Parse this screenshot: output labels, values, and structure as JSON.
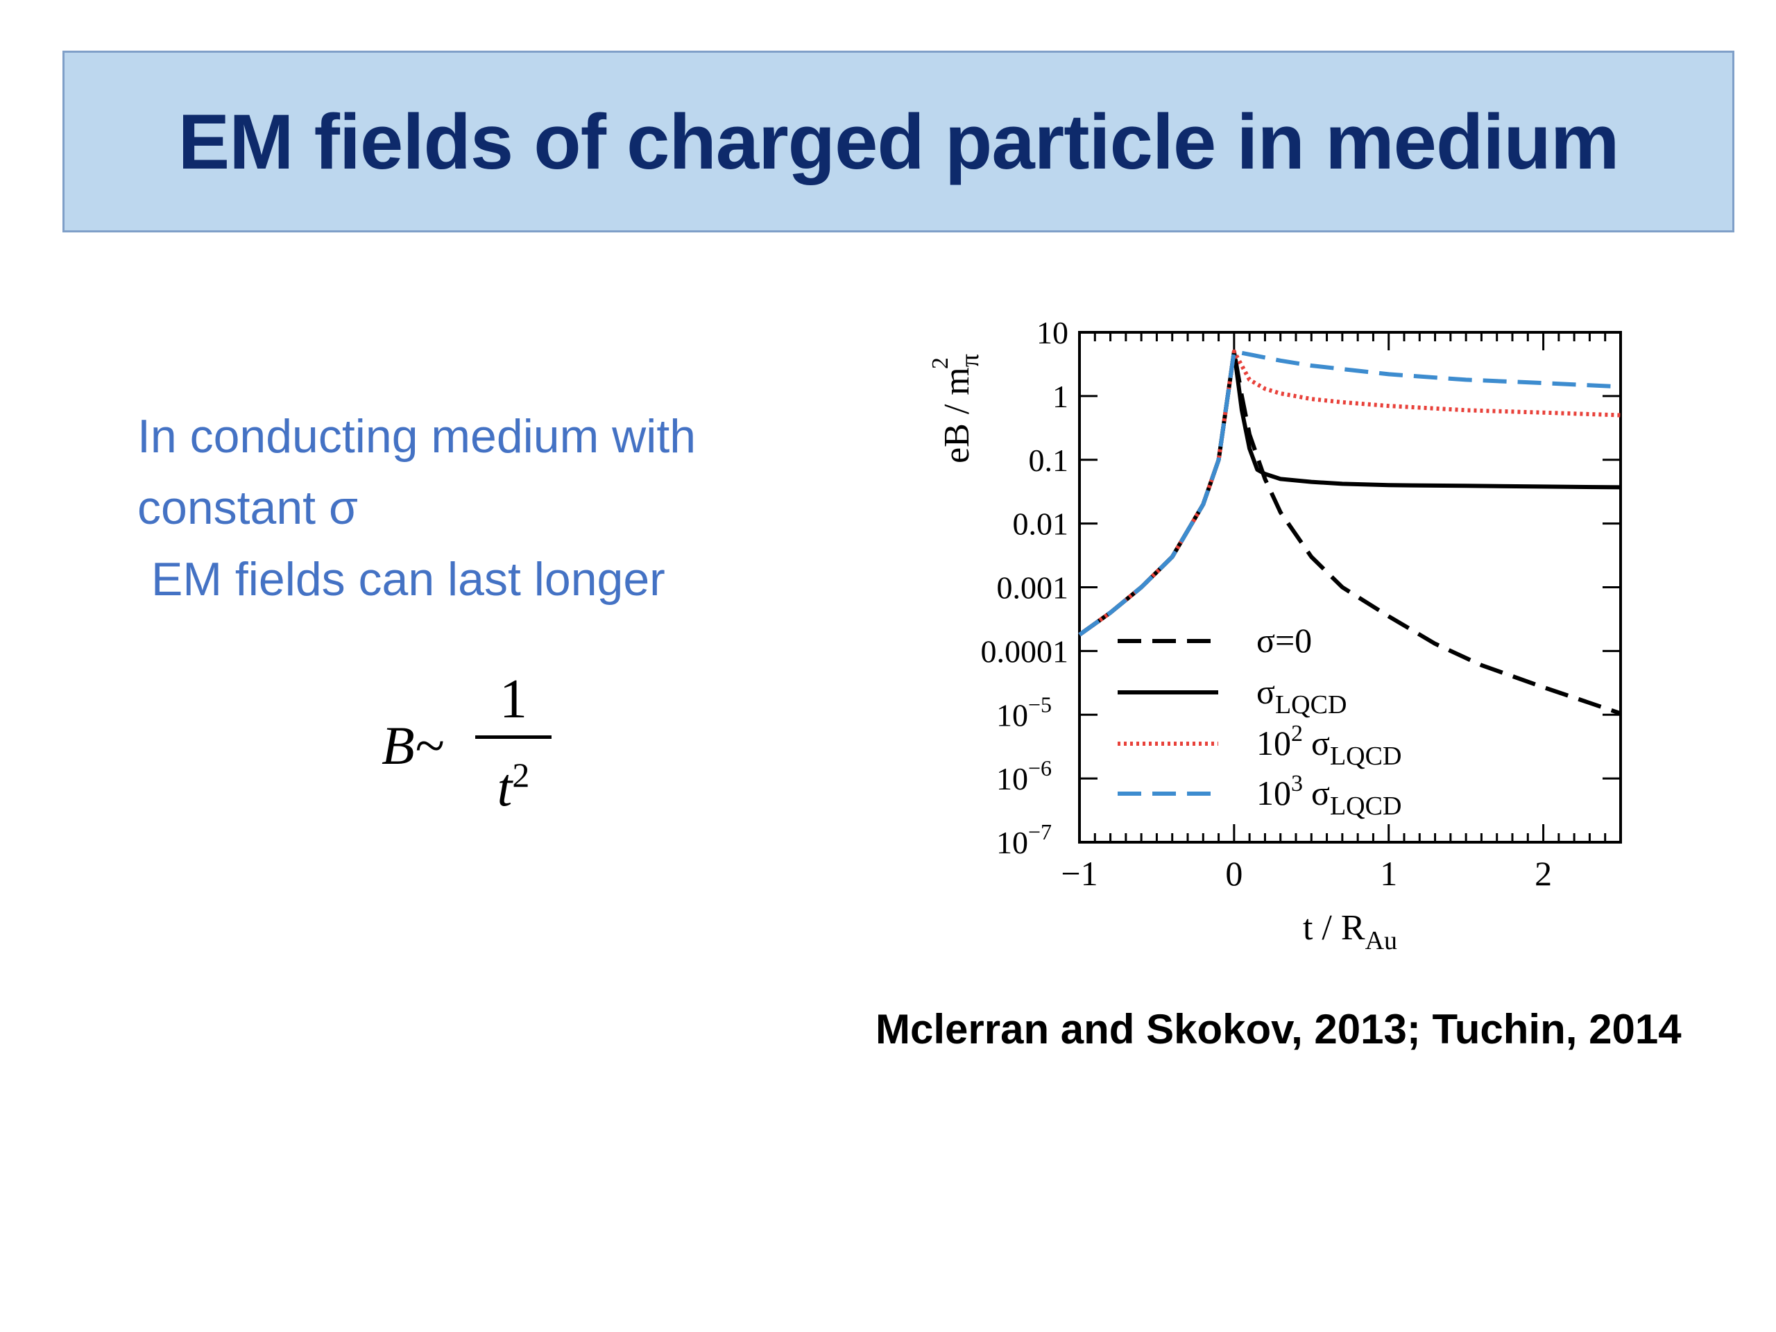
{
  "slide": {
    "title": "EM fields of charged particle in medium",
    "body_lines": [
      "In conducting medium with",
      "constant σ",
      "EM fields can last longer"
    ],
    "formula": {
      "lhs": "B~",
      "numerator": "1",
      "denominator_base": "t",
      "denominator_exp": "2"
    },
    "citation": "Mclerran and Skokov, 2013; Tuchin, 2014",
    "colors": {
      "title_bg": "#bdd7ee",
      "title_text": "#0e2a6b",
      "body_text": "#4472c4"
    }
  },
  "chart_data": {
    "type": "line",
    "title": "",
    "xlabel": "t / R",
    "xlabel_sub": "Au",
    "ylabel": "eB / m",
    "ylabel_sub": "π",
    "ylabel_sup": "2",
    "xlim": [
      -1,
      2.5
    ],
    "ylim": [
      1e-07,
      10
    ],
    "yscale": "log",
    "x_ticks": [
      {
        "value": -1,
        "label": "−1"
      },
      {
        "value": 0,
        "label": "0"
      },
      {
        "value": 1,
        "label": "1"
      },
      {
        "value": 2,
        "label": "2"
      }
    ],
    "y_ticks": [
      {
        "value": 10,
        "label": "10"
      },
      {
        "value": 1,
        "label": "1"
      },
      {
        "value": 0.1,
        "label": "0.1"
      },
      {
        "value": 0.01,
        "label": "0.01"
      },
      {
        "value": 0.001,
        "label": "0.001"
      },
      {
        "value": 0.0001,
        "label": "0.0001"
      },
      {
        "value": 1e-05,
        "label_base": "10",
        "label_exp": "−5"
      },
      {
        "value": 1e-06,
        "label_base": "10",
        "label_exp": "−6"
      },
      {
        "value": 1e-07,
        "label_base": "10",
        "label_exp": "−7"
      }
    ],
    "legend_position": "lower-left",
    "series": [
      {
        "name": "σ=0",
        "legend_prefix": "",
        "legend_exp": "",
        "legend_main": "σ=0",
        "legend_sub": "",
        "color": "#000000",
        "style": "dashed",
        "x": [
          -1,
          -0.8,
          -0.6,
          -0.4,
          -0.2,
          -0.1,
          0,
          0.05,
          0.1,
          0.2,
          0.3,
          0.5,
          0.7,
          1.0,
          1.3,
          1.6,
          2.0,
          2.5
        ],
        "y": [
          0.00018,
          0.0004,
          0.001,
          0.003,
          0.02,
          0.1,
          5,
          1.0,
          0.25,
          0.05,
          0.015,
          0.003,
          0.001,
          0.00035,
          0.00013,
          6e-05,
          2.7e-05,
          1.05e-05
        ]
      },
      {
        "name": "σLQCD",
        "legend_prefix": "",
        "legend_exp": "",
        "legend_main": "σ",
        "legend_sub": "LQCD",
        "color": "#000000",
        "style": "solid",
        "x": [
          -1,
          -0.8,
          -0.6,
          -0.4,
          -0.2,
          -0.1,
          0,
          0.05,
          0.1,
          0.15,
          0.2,
          0.3,
          0.5,
          0.7,
          1.0,
          1.5,
          2.0,
          2.5
        ],
        "y": [
          0.00018,
          0.0004,
          0.001,
          0.003,
          0.02,
          0.1,
          5,
          0.6,
          0.15,
          0.07,
          0.06,
          0.05,
          0.045,
          0.042,
          0.04,
          0.039,
          0.038,
          0.037
        ]
      },
      {
        "name": "10² σLQCD",
        "legend_prefix": "10",
        "legend_exp": "2",
        "legend_main": "σ",
        "legend_sub": "LQCD",
        "color": "#e8413a",
        "style": "dotted",
        "x": [
          -1,
          -0.8,
          -0.6,
          -0.4,
          -0.2,
          -0.1,
          0,
          0.1,
          0.2,
          0.3,
          0.5,
          0.7,
          1.0,
          1.5,
          2.0,
          2.5
        ],
        "y": [
          0.00018,
          0.0004,
          0.001,
          0.003,
          0.02,
          0.1,
          5,
          1.8,
          1.3,
          1.1,
          0.9,
          0.8,
          0.7,
          0.6,
          0.55,
          0.5
        ]
      },
      {
        "name": "10³ σLQCD",
        "legend_prefix": "10",
        "legend_exp": "3",
        "legend_main": "σ",
        "legend_sub": "LQCD",
        "color": "#3d8ccf",
        "style": "dashed",
        "x": [
          -1,
          -0.8,
          -0.6,
          -0.4,
          -0.2,
          -0.1,
          0,
          0.1,
          0.3,
          0.5,
          1.0,
          1.5,
          2.0,
          2.5
        ],
        "y": [
          0.00018,
          0.0004,
          0.001,
          0.003,
          0.02,
          0.1,
          5,
          4.5,
          3.6,
          3.0,
          2.2,
          1.8,
          1.6,
          1.4
        ]
      }
    ]
  }
}
